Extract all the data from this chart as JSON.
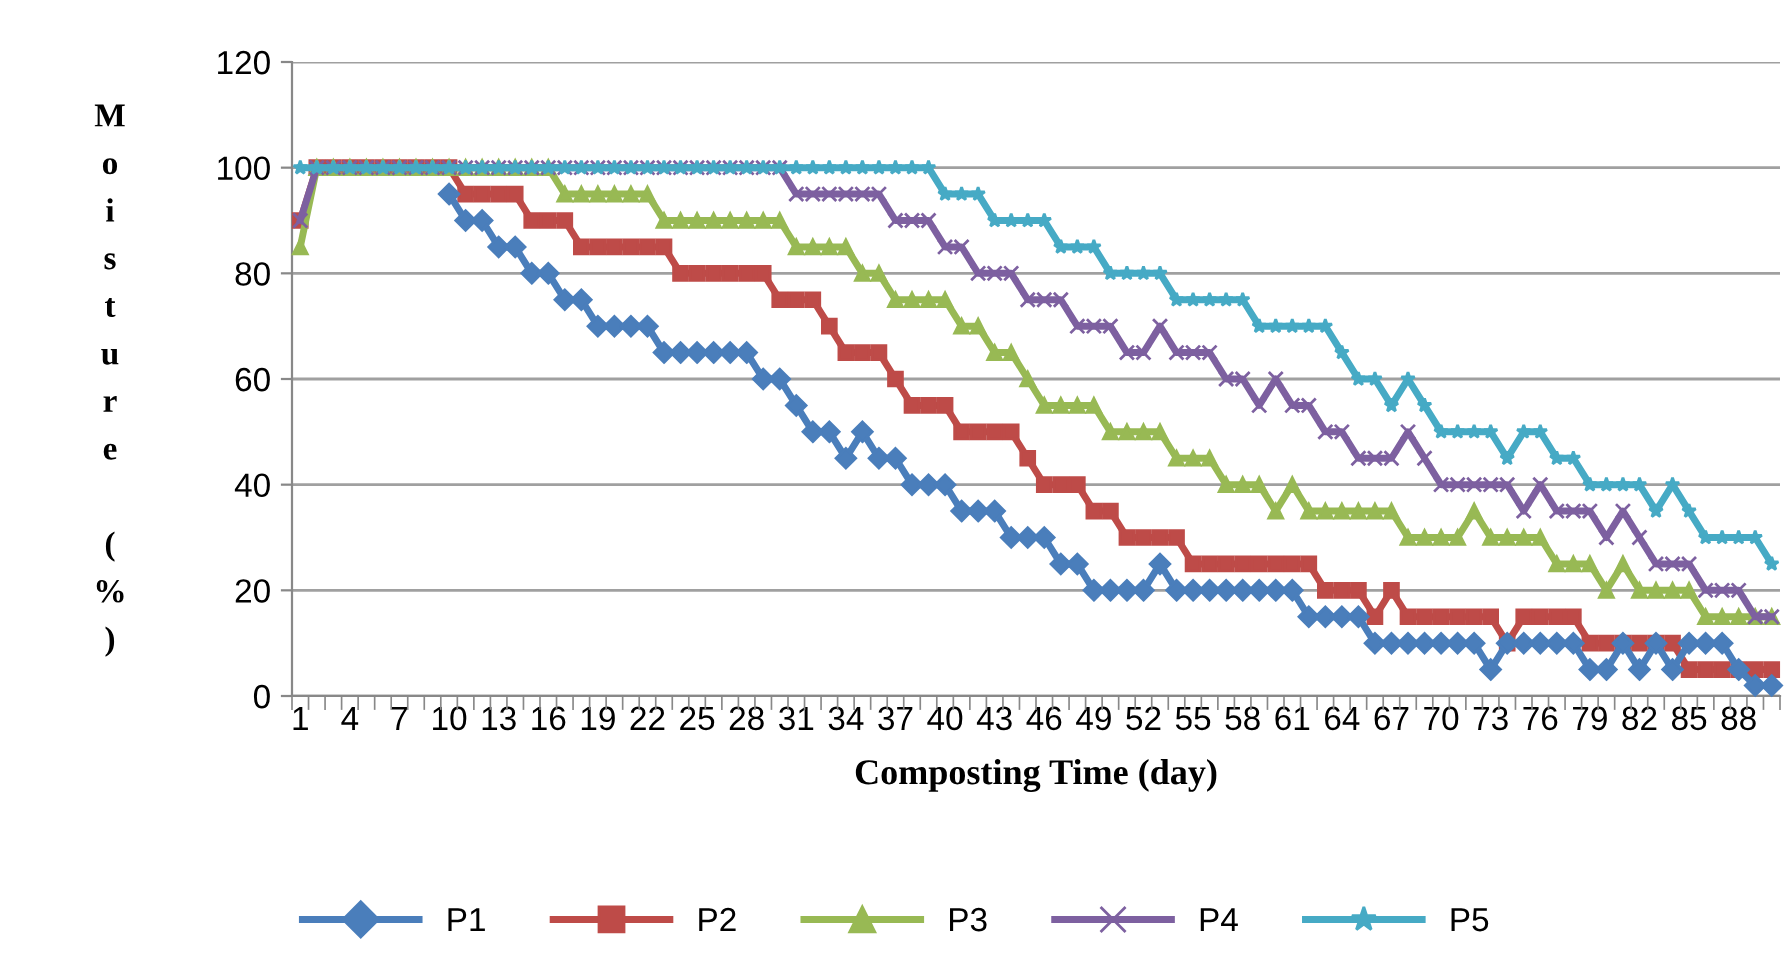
{
  "chart_data": {
    "type": "line",
    "xlabel": "Composting Time (day)",
    "ylabel": "Moisture (%)",
    "categories": [
      "1",
      null,
      null,
      "4",
      null,
      null,
      "7",
      null,
      null,
      "10",
      null,
      null,
      "13",
      null,
      null,
      "16",
      null,
      null,
      "19",
      null,
      null,
      "22",
      null,
      null,
      "25",
      null,
      null,
      "28",
      null,
      null,
      "31",
      null,
      null,
      "34",
      null,
      null,
      "37",
      null,
      null,
      "40",
      null,
      null,
      "43",
      null,
      null,
      "46",
      null,
      null,
      "49",
      null,
      null,
      "52",
      null,
      null,
      "55",
      null,
      null,
      "58",
      null,
      null,
      "61",
      null,
      null,
      "64",
      null,
      null,
      "67",
      null,
      null,
      "70",
      null,
      null,
      "73",
      null,
      null,
      "76",
      null,
      null,
      "79",
      null,
      null,
      "82",
      null,
      null,
      "85",
      null,
      null,
      "88",
      null,
      null
    ],
    "ylim": [
      0,
      120
    ],
    "yticks": [
      0,
      20,
      40,
      60,
      80,
      100,
      120
    ],
    "grid": "y",
    "legend": "bottom",
    "series": [
      {
        "name": "P1",
        "color": "#4a7ebb",
        "marker": "diamond",
        "values": [
          null,
          null,
          null,
          null,
          null,
          null,
          null,
          null,
          null,
          95,
          90,
          90,
          85,
          85,
          80,
          80,
          75,
          75,
          70,
          70,
          70,
          70,
          65,
          65,
          65,
          65,
          65,
          65,
          60,
          60,
          55,
          50,
          50,
          45,
          50,
          45,
          45,
          40,
          40,
          40,
          35,
          35,
          35,
          30,
          30,
          30,
          25,
          25,
          20,
          20,
          20,
          20,
          25,
          20,
          20,
          20,
          20,
          20,
          20,
          20,
          20,
          15,
          15,
          15,
          15,
          10,
          10,
          10,
          10,
          10,
          10,
          10,
          5,
          10,
          10,
          10,
          10,
          10,
          5,
          5,
          10,
          5,
          10,
          5,
          10,
          10,
          10,
          5,
          2,
          2
        ]
      },
      {
        "name": "P2",
        "color": "#be4b48",
        "marker": "square",
        "values": [
          90,
          100,
          100,
          100,
          100,
          100,
          100,
          100,
          100,
          100,
          95,
          95,
          95,
          95,
          90,
          90,
          90,
          85,
          85,
          85,
          85,
          85,
          85,
          80,
          80,
          80,
          80,
          80,
          80,
          75,
          75,
          75,
          70,
          65,
          65,
          65,
          60,
          55,
          55,
          55,
          50,
          50,
          50,
          50,
          45,
          40,
          40,
          40,
          35,
          35,
          30,
          30,
          30,
          30,
          25,
          25,
          25,
          25,
          25,
          25,
          25,
          25,
          20,
          20,
          20,
          15,
          20,
          15,
          15,
          15,
          15,
          15,
          15,
          10,
          15,
          15,
          15,
          15,
          10,
          10,
          10,
          10,
          10,
          10,
          5,
          5,
          5,
          5,
          5,
          5
        ]
      },
      {
        "name": "P3",
        "color": "#98b954",
        "marker": "triangle",
        "values": [
          85,
          100,
          100,
          100,
          100,
          100,
          100,
          100,
          100,
          100,
          100,
          100,
          100,
          100,
          100,
          100,
          95,
          95,
          95,
          95,
          95,
          95,
          90,
          90,
          90,
          90,
          90,
          90,
          90,
          90,
          85,
          85,
          85,
          85,
          80,
          80,
          75,
          75,
          75,
          75,
          70,
          70,
          65,
          65,
          60,
          55,
          55,
          55,
          55,
          50,
          50,
          50,
          50,
          45,
          45,
          45,
          40,
          40,
          40,
          35,
          40,
          35,
          35,
          35,
          35,
          35,
          35,
          30,
          30,
          30,
          30,
          35,
          30,
          30,
          30,
          30,
          25,
          25,
          25,
          20,
          25,
          20,
          20,
          20,
          20,
          15,
          15,
          15,
          15,
          15
        ]
      },
      {
        "name": "P4",
        "color": "#7d60a0",
        "marker": "cross",
        "values": [
          90,
          100,
          100,
          100,
          100,
          100,
          100,
          100,
          100,
          100,
          100,
          100,
          100,
          100,
          100,
          100,
          100,
          100,
          100,
          100,
          100,
          100,
          100,
          100,
          100,
          100,
          100,
          100,
          100,
          100,
          95,
          95,
          95,
          95,
          95,
          95,
          90,
          90,
          90,
          85,
          85,
          80,
          80,
          80,
          75,
          75,
          75,
          70,
          70,
          70,
          65,
          65,
          70,
          65,
          65,
          65,
          60,
          60,
          55,
          60,
          55,
          55,
          50,
          50,
          45,
          45,
          45,
          50,
          45,
          40,
          40,
          40,
          40,
          40,
          35,
          40,
          35,
          35,
          35,
          30,
          35,
          30,
          25,
          25,
          25,
          20,
          20,
          20,
          15,
          15
        ]
      },
      {
        "name": "P5",
        "color": "#46aac5",
        "marker": "star",
        "values": [
          100,
          100,
          100,
          100,
          100,
          100,
          100,
          100,
          100,
          100,
          100,
          100,
          100,
          100,
          100,
          100,
          100,
          100,
          100,
          100,
          100,
          100,
          100,
          100,
          100,
          100,
          100,
          100,
          100,
          100,
          100,
          100,
          100,
          100,
          100,
          100,
          100,
          100,
          100,
          95,
          95,
          95,
          90,
          90,
          90,
          90,
          85,
          85,
          85,
          80,
          80,
          80,
          80,
          75,
          75,
          75,
          75,
          75,
          70,
          70,
          70,
          70,
          70,
          65,
          60,
          60,
          55,
          60,
          55,
          50,
          50,
          50,
          50,
          45,
          50,
          50,
          45,
          45,
          40,
          40,
          40,
          40,
          35,
          40,
          35,
          30,
          30,
          30,
          30,
          25
        ]
      }
    ]
  }
}
